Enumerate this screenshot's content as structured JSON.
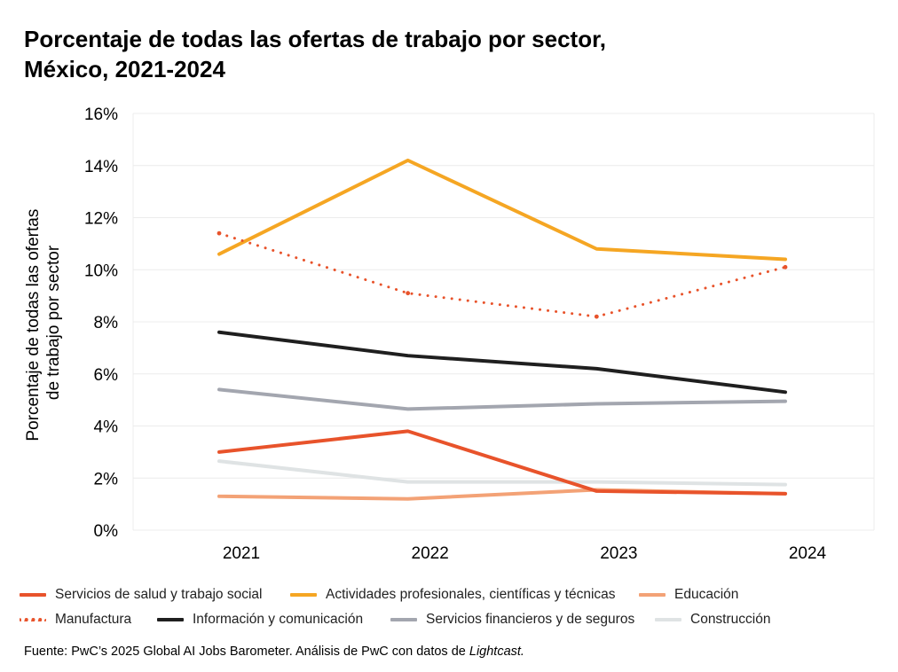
{
  "title_lines": [
    "Porcentaje de todas las ofertas de trabajo por sector,",
    "México, 2021-2024"
  ],
  "source": {
    "text": "Fuente:  PwC’s 2025 Global AI Jobs Barometer. Análisis de PwC con datos de ",
    "italic": "Lightcast."
  },
  "chart_data": {
    "type": "line",
    "ylabel_lines": [
      "Porcentaje de todas las ofertas",
      "de trabajo por sector"
    ],
    "xlabel": "",
    "x": [
      "2021",
      "2022",
      "2023",
      "2024"
    ],
    "ylim": [
      0,
      16
    ],
    "y_ticks": [
      "0%",
      "2%",
      "4%",
      "6%",
      "8%",
      "10%",
      "12%",
      "14%",
      "16%"
    ],
    "grid": true,
    "legend_position": "bottom",
    "series": [
      {
        "name": "Servicios de salud y trabajo social",
        "values": [
          3.0,
          3.8,
          1.5,
          1.4
        ],
        "color": "#e8532b",
        "style": "solid"
      },
      {
        "name": "Actividades profesionales, científicas y técnicas",
        "values": [
          10.6,
          14.2,
          10.8,
          10.4
        ],
        "color": "#f5a623",
        "style": "solid"
      },
      {
        "name": "Educación",
        "values": [
          1.3,
          1.2,
          1.55,
          1.4
        ],
        "color": "#f3a276",
        "style": "solid"
      },
      {
        "name": "Manufactura",
        "values": [
          11.4,
          9.1,
          8.2,
          10.1
        ],
        "color": "#e8532b",
        "style": "dotted"
      },
      {
        "name": "Información y comunicación",
        "values": [
          7.6,
          6.7,
          6.2,
          5.3
        ],
        "color": "#1f1f1f",
        "style": "solid"
      },
      {
        "name": "Servicios financieros y de seguros",
        "values": [
          5.4,
          4.65,
          4.85,
          4.95
        ],
        "color": "#a3a6af",
        "style": "solid"
      },
      {
        "name": "Construcción",
        "values": [
          2.65,
          1.85,
          1.85,
          1.75
        ],
        "color": "#dfe3e4",
        "style": "solid"
      }
    ]
  }
}
